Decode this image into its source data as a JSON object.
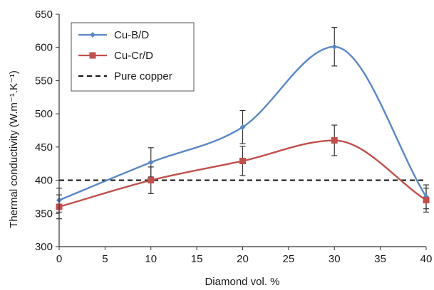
{
  "chart_data": {
    "type": "line",
    "xlabel": "Diamond vol. %",
    "ylabel": "Thermal conductivity (W.m⁻¹.K⁻¹)",
    "xlim": [
      0,
      40
    ],
    "ylim": [
      300,
      650
    ],
    "xticks": [
      0,
      5,
      10,
      15,
      20,
      25,
      30,
      35,
      40
    ],
    "yticks": [
      300,
      350,
      400,
      450,
      500,
      550,
      600,
      650
    ],
    "grid": false,
    "legend_position": "top-left",
    "series": [
      {
        "name": "Cu-B/D",
        "color": "#5b87c5",
        "marker": "diamond",
        "smooth": true,
        "x": [
          0,
          10,
          20,
          30,
          40
        ],
        "y": [
          370,
          427,
          480,
          601,
          375
        ],
        "err": [
          18,
          22,
          25,
          29,
          18
        ]
      },
      {
        "name": "Cu-Cr/D",
        "color": "#c0504d",
        "marker": "square",
        "smooth": true,
        "x": [
          0,
          10,
          20,
          30,
          40
        ],
        "y": [
          360,
          400,
          429,
          460,
          370
        ],
        "err": [
          18,
          20,
          22,
          23,
          18
        ]
      },
      {
        "name": "Pure copper",
        "color": "#1a1a1a",
        "style": "dashed",
        "x": [
          0,
          40
        ],
        "y": [
          400,
          400
        ]
      }
    ]
  }
}
